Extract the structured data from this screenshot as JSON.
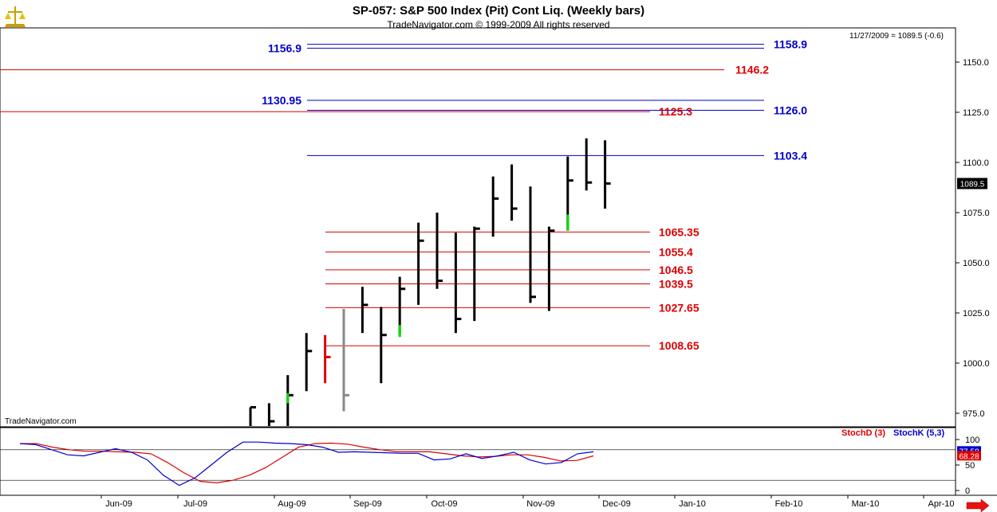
{
  "header": {
    "title": "SP-057:  S&P 500 Index (Pit) Cont Liq.  (Weekly bars)",
    "subtitle": "TradeNavigator.com © 1999-2009 All rights reserved",
    "last_quote": "11/27/2009 = 1089.5 (-0.6)",
    "watermark": "TradeNavigator.com",
    "logo_icon": "scales-icon"
  },
  "colors": {
    "blue_level": "#0000cc",
    "red_level": "#dd0000",
    "bar": "#000000",
    "up_bar": "#00dd00",
    "stoch_d": "#dd0000",
    "stoch_k": "#0000cc",
    "scroll_arrow": "#ee1111"
  },
  "chart_data": [
    {
      "type": "bar",
      "subtype": "ohlc",
      "ylim": [
        968,
        1170
      ],
      "yticks": [
        "1150.0",
        "1125.0",
        "1100.0",
        "1075.0",
        "1050.0",
        "1025.0",
        "1000.0",
        "975.0"
      ],
      "current_price": "1089.5",
      "x_axis_labels": [
        "Jun-09",
        "Jul-09",
        "Aug-09",
        "Sep-09",
        "Oct-09",
        "Nov-09",
        "Dec-09",
        "Jan-10",
        "Feb-10",
        "Mar-10",
        "Apr-10"
      ],
      "bars": [
        {
          "high": 978,
          "low": 960,
          "close": 978,
          "color": "black"
        },
        {
          "high": 980,
          "low": 968,
          "close": 971,
          "color": "black"
        },
        {
          "high": 994,
          "low": 968,
          "close": 984,
          "color": "black"
        },
        {
          "high": 1015,
          "low": 986,
          "close": 1006,
          "color": "black"
        },
        {
          "high": 1014,
          "low": 990,
          "close": 1003,
          "color": "red"
        },
        {
          "high": 1027,
          "low": 976,
          "close": 984,
          "color": "gray"
        },
        {
          "high": 1038,
          "low": 1015,
          "close": 1029,
          "color": "black"
        },
        {
          "high": 1028,
          "low": 990,
          "close": 1014,
          "color": "black"
        },
        {
          "high": 1043,
          "low": 1014,
          "close": 1037,
          "color": "black"
        },
        {
          "high": 1070,
          "low": 1029,
          "close": 1061,
          "color": "black"
        },
        {
          "high": 1075,
          "low": 1037,
          "close": 1041,
          "color": "black"
        },
        {
          "high": 1065,
          "low": 1015,
          "close": 1022,
          "color": "black"
        },
        {
          "high": 1068,
          "low": 1021,
          "close": 1067,
          "color": "black"
        },
        {
          "high": 1093,
          "low": 1063,
          "close": 1082,
          "color": "black"
        },
        {
          "high": 1099,
          "low": 1071,
          "close": 1077,
          "color": "black"
        },
        {
          "high": 1088,
          "low": 1030,
          "close": 1033,
          "color": "black"
        },
        {
          "high": 1068,
          "low": 1026,
          "close": 1066,
          "color": "black"
        },
        {
          "high": 1103,
          "low": 1066,
          "close": 1091,
          "color": "black"
        },
        {
          "high": 1112,
          "low": 1086,
          "close": 1090,
          "color": "black"
        },
        {
          "high": 1111,
          "low": 1077,
          "close": 1089.5,
          "color": "black"
        }
      ],
      "levels": [
        {
          "label": "1158.9",
          "value": 1158.9,
          "color": "blue",
          "label_side": "right"
        },
        {
          "label": "1156.9",
          "value": 1156.9,
          "color": "blue",
          "label_side": "left"
        },
        {
          "label": "1146.2",
          "value": 1146.2,
          "color": "red",
          "label_side": "right"
        },
        {
          "label": "1130.95",
          "value": 1130.95,
          "color": "blue",
          "label_side": "left"
        },
        {
          "label": "1126.0",
          "value": 1126.0,
          "color": "blue",
          "label_side": "right"
        },
        {
          "label": "1125.3",
          "value": 1125.3,
          "color": "red",
          "label_side": "right"
        },
        {
          "label": "1103.4",
          "value": 1103.4,
          "color": "blue",
          "label_side": "right"
        },
        {
          "label": "1065.35",
          "value": 1065.35,
          "color": "red",
          "label_side": "right"
        },
        {
          "label": "1055.4",
          "value": 1055.4,
          "color": "red",
          "label_side": "right"
        },
        {
          "label": "1046.5",
          "value": 1046.5,
          "color": "red",
          "label_side": "right"
        },
        {
          "label": "1039.5",
          "value": 1039.5,
          "color": "red",
          "label_side": "right"
        },
        {
          "label": "1027.65",
          "value": 1027.65,
          "color": "red",
          "label_side": "right"
        },
        {
          "label": "1008.65",
          "value": 1008.65,
          "color": "red",
          "label_side": "right"
        }
      ]
    },
    {
      "type": "line",
      "ylim": [
        0,
        100
      ],
      "yticks": [
        "100",
        "50",
        "0"
      ],
      "series": [
        {
          "name": "StochD (3)",
          "current": "68.28",
          "values": [
            92,
            92,
            85,
            80,
            77,
            77,
            76,
            75,
            72,
            55,
            35,
            18,
            15,
            20,
            30,
            45,
            65,
            85,
            92,
            93,
            91,
            85,
            80,
            76,
            76,
            76,
            72,
            68,
            66,
            67,
            70,
            70,
            65,
            58,
            59,
            68
          ]
        },
        {
          "name": "StochK (5,3)",
          "current": "77.58",
          "values": [
            92,
            90,
            80,
            70,
            68,
            75,
            82,
            75,
            60,
            30,
            10,
            25,
            50,
            75,
            95,
            95,
            93,
            92,
            90,
            85,
            75,
            76,
            75,
            74,
            73,
            73,
            60,
            62,
            72,
            63,
            68,
            75,
            60,
            52,
            55,
            72,
            76
          ]
        }
      ],
      "reference_lines": [
        80,
        20
      ]
    }
  ]
}
